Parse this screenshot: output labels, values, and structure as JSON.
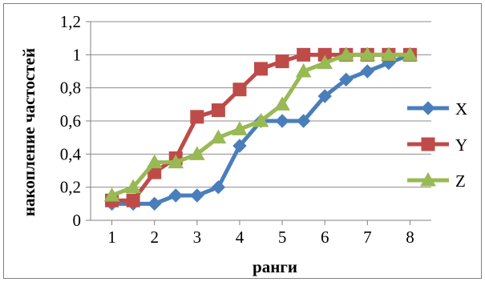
{
  "chart_data": {
    "type": "line",
    "xlabel": "ранги",
    "ylabel": "накопление частостей",
    "xlim": [
      0.5,
      8.5
    ],
    "ylim": [
      0,
      1.2
    ],
    "x_ticks": [
      "1",
      "2",
      "3",
      "4",
      "5",
      "6",
      "7",
      "8"
    ],
    "y_ticks": [
      "0",
      "0,2",
      "0,4",
      "0,6",
      "0,8",
      "1",
      "1,2"
    ],
    "grid": "horizontal",
    "legend_position": "right",
    "x": [
      1,
      1.5,
      2,
      2.5,
      3,
      3.5,
      4,
      4.5,
      5,
      5.5,
      6,
      6.5,
      7,
      7.5,
      8
    ],
    "series": [
      {
        "name": "X",
        "marker": "diamond",
        "color": "#4a7ebb",
        "values": [
          0.1,
          0.1,
          0.1,
          0.15,
          0.15,
          0.2,
          0.45,
          0.6,
          0.6,
          0.6,
          0.75,
          0.85,
          0.9,
          0.95,
          1.0
        ]
      },
      {
        "name": "Y",
        "marker": "square",
        "color": "#be4b48",
        "values": [
          0.12,
          0.12,
          0.29,
          0.375,
          0.625,
          0.665,
          0.79,
          0.915,
          0.96,
          1.0,
          1.0,
          1.0,
          1.0,
          1.0,
          1.0
        ]
      },
      {
        "name": "Z",
        "marker": "triangle",
        "color": "#98b954",
        "values": [
          0.15,
          0.2,
          0.35,
          0.35,
          0.4,
          0.5,
          0.55,
          0.6,
          0.7,
          0.9,
          0.95,
          1.0,
          1.0,
          1.0,
          1.0
        ]
      }
    ]
  }
}
